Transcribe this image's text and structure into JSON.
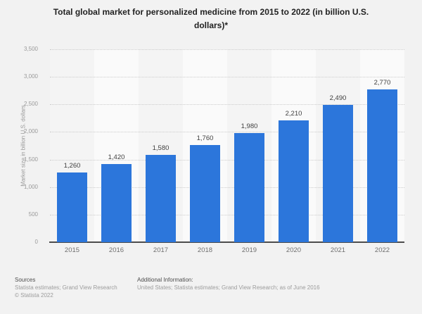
{
  "title": "Total global market for personalized medicine from 2015 to 2022 (in billion U.S. dollars)*",
  "chart_data": {
    "type": "bar",
    "categories": [
      "2015",
      "2016",
      "2017",
      "2018",
      "2019",
      "2020",
      "2021",
      "2022"
    ],
    "values": [
      1260,
      1420,
      1580,
      1760,
      1980,
      2210,
      2490,
      2770
    ],
    "value_labels": [
      "1,260",
      "1,420",
      "1,580",
      "1,760",
      "1,980",
      "2,210",
      "2,490",
      "2,770"
    ],
    "title": "Total global market for personalized medicine from 2015 to 2022 (in billion U.S. dollars)*",
    "xlabel": "",
    "ylabel": "Market size in billion U.S. dollars",
    "ylim": [
      0,
      3500
    ],
    "yticks": [
      0,
      500,
      1000,
      1500,
      2000,
      2500,
      3000,
      3500
    ],
    "ytick_labels": [
      "0",
      "500",
      "1,000",
      "1,500",
      "2,000",
      "2,500",
      "3,000",
      "3,500"
    ],
    "grid": "horizontal-dotted",
    "legend": "none",
    "bar_color": "#2c76db"
  },
  "colors": {
    "background": "#f2f2f2",
    "band_dark": "#f4f4f4",
    "band_light": "#fafafa",
    "gridline": "#cccccc",
    "axis": "#4c4c4c",
    "bar": "#2c76db"
  },
  "footer": {
    "sources_label": "Sources",
    "sources_text": "Statista estimates; Grand View Research",
    "copyright": "© Statista 2022",
    "additional_info_label": "Additional Information:",
    "additional_info_text": "United States; Statista estimates; Grand View Research; as of June 2016"
  }
}
